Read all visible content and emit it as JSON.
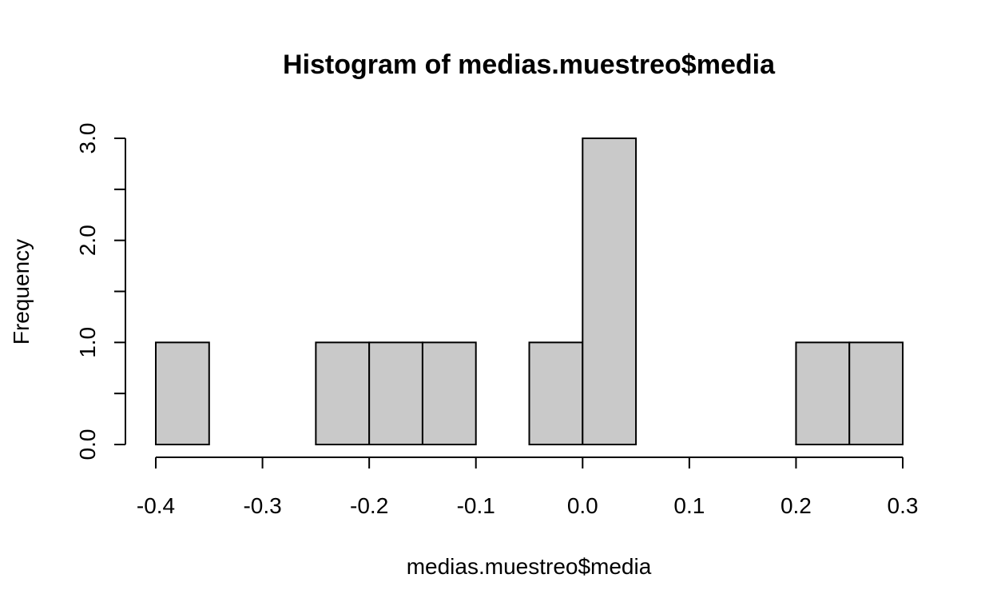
{
  "chart_data": {
    "type": "bar",
    "title": "Histogram of medias.muestreo$media",
    "xlabel": "medias.muestreo$media",
    "ylabel": "Frequency",
    "bin_edges": [
      -0.4,
      -0.35,
      -0.3,
      -0.25,
      -0.2,
      -0.15,
      -0.1,
      -0.05,
      0.0,
      0.05,
      0.1,
      0.15,
      0.2,
      0.25,
      0.3
    ],
    "values": [
      1,
      0,
      0,
      1,
      1,
      1,
      0,
      1,
      3,
      0,
      0,
      0,
      1,
      1
    ],
    "xlim": [
      -0.4,
      0.3
    ],
    "ylim": [
      0,
      3
    ],
    "x_ticks": [
      {
        "value": -0.4,
        "label": "-0.4"
      },
      {
        "value": -0.3,
        "label": "-0.3"
      },
      {
        "value": -0.2,
        "label": "-0.2"
      },
      {
        "value": -0.1,
        "label": "-0.1"
      },
      {
        "value": 0.0,
        "label": "0.0"
      },
      {
        "value": 0.1,
        "label": "0.1"
      },
      {
        "value": 0.2,
        "label": "0.2"
      },
      {
        "value": 0.3,
        "label": "0.3"
      }
    ],
    "y_ticks": [
      {
        "value": 0.0,
        "label": "0.0"
      },
      {
        "value": 0.5,
        "label": ""
      },
      {
        "value": 1.0,
        "label": "1.0"
      },
      {
        "value": 1.5,
        "label": ""
      },
      {
        "value": 2.0,
        "label": "2.0"
      },
      {
        "value": 2.5,
        "label": ""
      },
      {
        "value": 3.0,
        "label": "3.0"
      }
    ],
    "grid": false,
    "colors": {
      "bar_fill": "#c9c9c9",
      "bar_stroke": "#000000"
    }
  }
}
